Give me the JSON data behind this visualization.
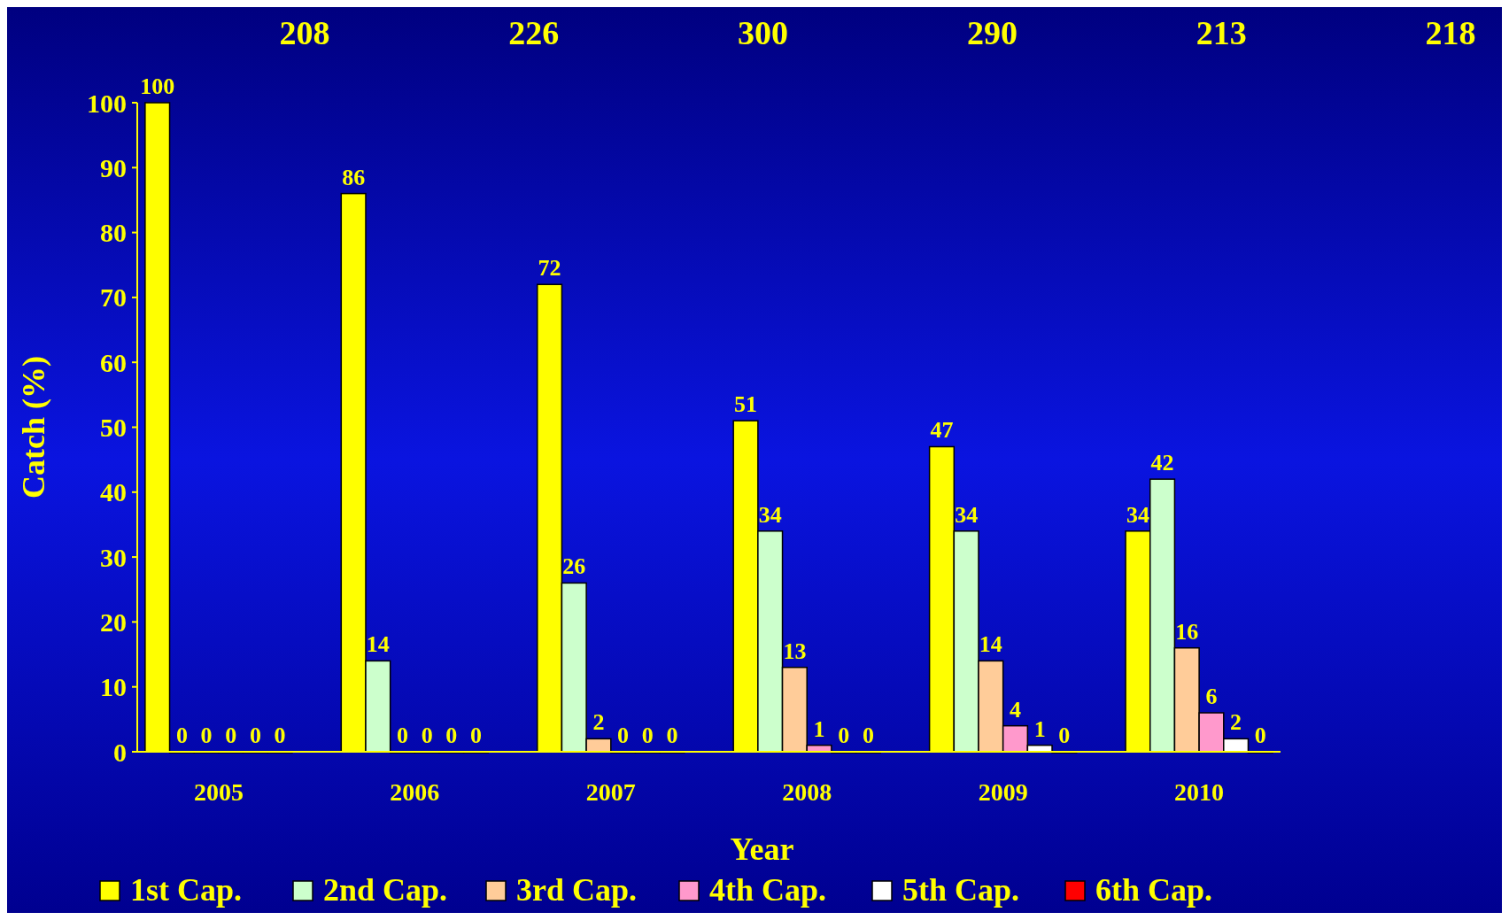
{
  "chart_data": {
    "type": "bar",
    "xlabel": "Year",
    "ylabel": "Catch (%)",
    "categories": [
      "2005",
      "2006",
      "2007",
      "2008",
      "2009",
      "2010"
    ],
    "series": [
      {
        "name": "1st Cap.",
        "color": "#ffff00",
        "values": [
          100,
          86,
          72,
          51,
          47,
          34
        ]
      },
      {
        "name": "2nd Cap.",
        "color": "#ccffcc",
        "values": [
          0,
          14,
          26,
          34,
          34,
          42
        ]
      },
      {
        "name": "3rd Cap.",
        "color": "#ffcc99",
        "values": [
          0,
          0,
          2,
          13,
          14,
          16
        ]
      },
      {
        "name": "4th Cap.",
        "color": "#ff99cc",
        "values": [
          0,
          0,
          0,
          1,
          4,
          6
        ]
      },
      {
        "name": "5th Cap.",
        "color": "#ffffff",
        "values": [
          0,
          0,
          0,
          0,
          1,
          2
        ]
      },
      {
        "name": "6th Cap.",
        "color": "#ff0000",
        "values": [
          0,
          0,
          0,
          0,
          0,
          0
        ]
      }
    ],
    "ylim": [
      0,
      100
    ],
    "yticks": [
      0,
      10,
      20,
      30,
      40,
      50,
      60,
      70,
      80,
      90,
      100
    ],
    "data_labels": true,
    "legend": "bottom",
    "grid": false,
    "annotations": [
      "208",
      "226",
      "300",
      "290",
      "213",
      "218"
    ]
  }
}
